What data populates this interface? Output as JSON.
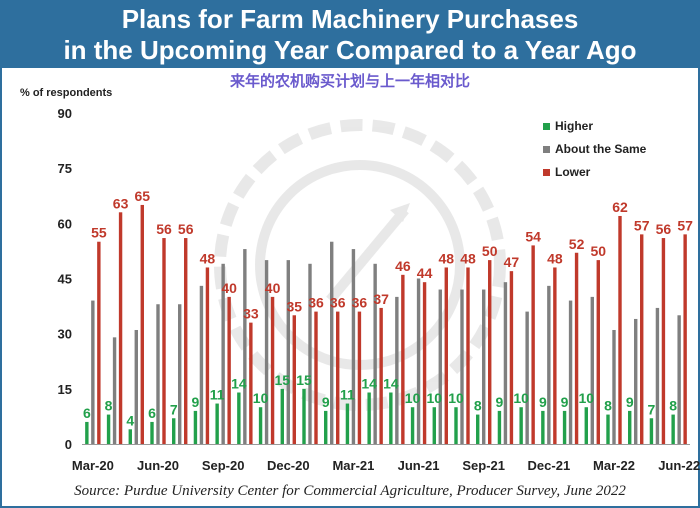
{
  "header": {
    "title_line1": "Plans for Farm Machinery Purchases",
    "title_line2": "in the Upcoming Year Compared to a Year Ago",
    "subtitle": "来年的农机购买计划与上一年相对比"
  },
  "source": "Source: Purdue University Center for Commercial Agriculture, Producer Survey, June 2022",
  "colors": {
    "higher": "#22a04b",
    "same": "#7f7f7f",
    "lower": "#c0392b",
    "title_bg": "#2e6f9e"
  },
  "chart_data": {
    "type": "bar",
    "ylabel": "% of respondents",
    "ylim": [
      0,
      90
    ],
    "yticks": [
      0,
      15,
      30,
      45,
      60,
      75,
      90
    ],
    "grid": false,
    "legend": "top-right",
    "categories": [
      "Mar-20",
      "Apr-20",
      "May-20",
      "Jun-20",
      "Jul-20",
      "Aug-20",
      "Sep-20",
      "Oct-20",
      "Nov-20",
      "Dec-20",
      "Jan-21",
      "Feb-21",
      "Mar-21",
      "Apr-21",
      "May-21",
      "Jun-21",
      "Jul-21",
      "Aug-21",
      "Sep-21",
      "Oct-21",
      "Nov-21",
      "Dec-21",
      "Jan-22",
      "Feb-22",
      "Mar-22",
      "Apr-22",
      "May-22",
      "Jun-22"
    ],
    "x_tick_labels": [
      "Mar-20",
      "Jun-20",
      "Sep-20",
      "Dec-20",
      "Mar-21",
      "Jun-21",
      "Sep-21",
      "Dec-21",
      "Mar-22",
      "Jun-22"
    ],
    "series": [
      {
        "name": "Higher",
        "values": [
          6,
          8,
          4,
          6,
          7,
          9,
          11,
          14,
          10,
          15,
          15,
          9,
          11,
          14,
          14,
          10,
          10,
          10,
          8,
          9,
          10,
          9,
          9,
          10,
          8,
          9,
          7,
          8
        ]
      },
      {
        "name": "About the Same",
        "values": [
          39,
          29,
          31,
          38,
          38,
          43,
          49,
          53,
          50,
          50,
          49,
          55,
          53,
          49,
          40,
          45,
          42,
          42,
          42,
          44,
          36,
          43,
          39,
          40,
          31,
          34,
          37,
          35
        ]
      },
      {
        "name": "Lower",
        "values": [
          55,
          63,
          65,
          56,
          56,
          48,
          40,
          33,
          40,
          35,
          36,
          36,
          36,
          37,
          46,
          44,
          48,
          48,
          50,
          47,
          54,
          48,
          52,
          50,
          62,
          57,
          56,
          57
        ]
      }
    ]
  }
}
